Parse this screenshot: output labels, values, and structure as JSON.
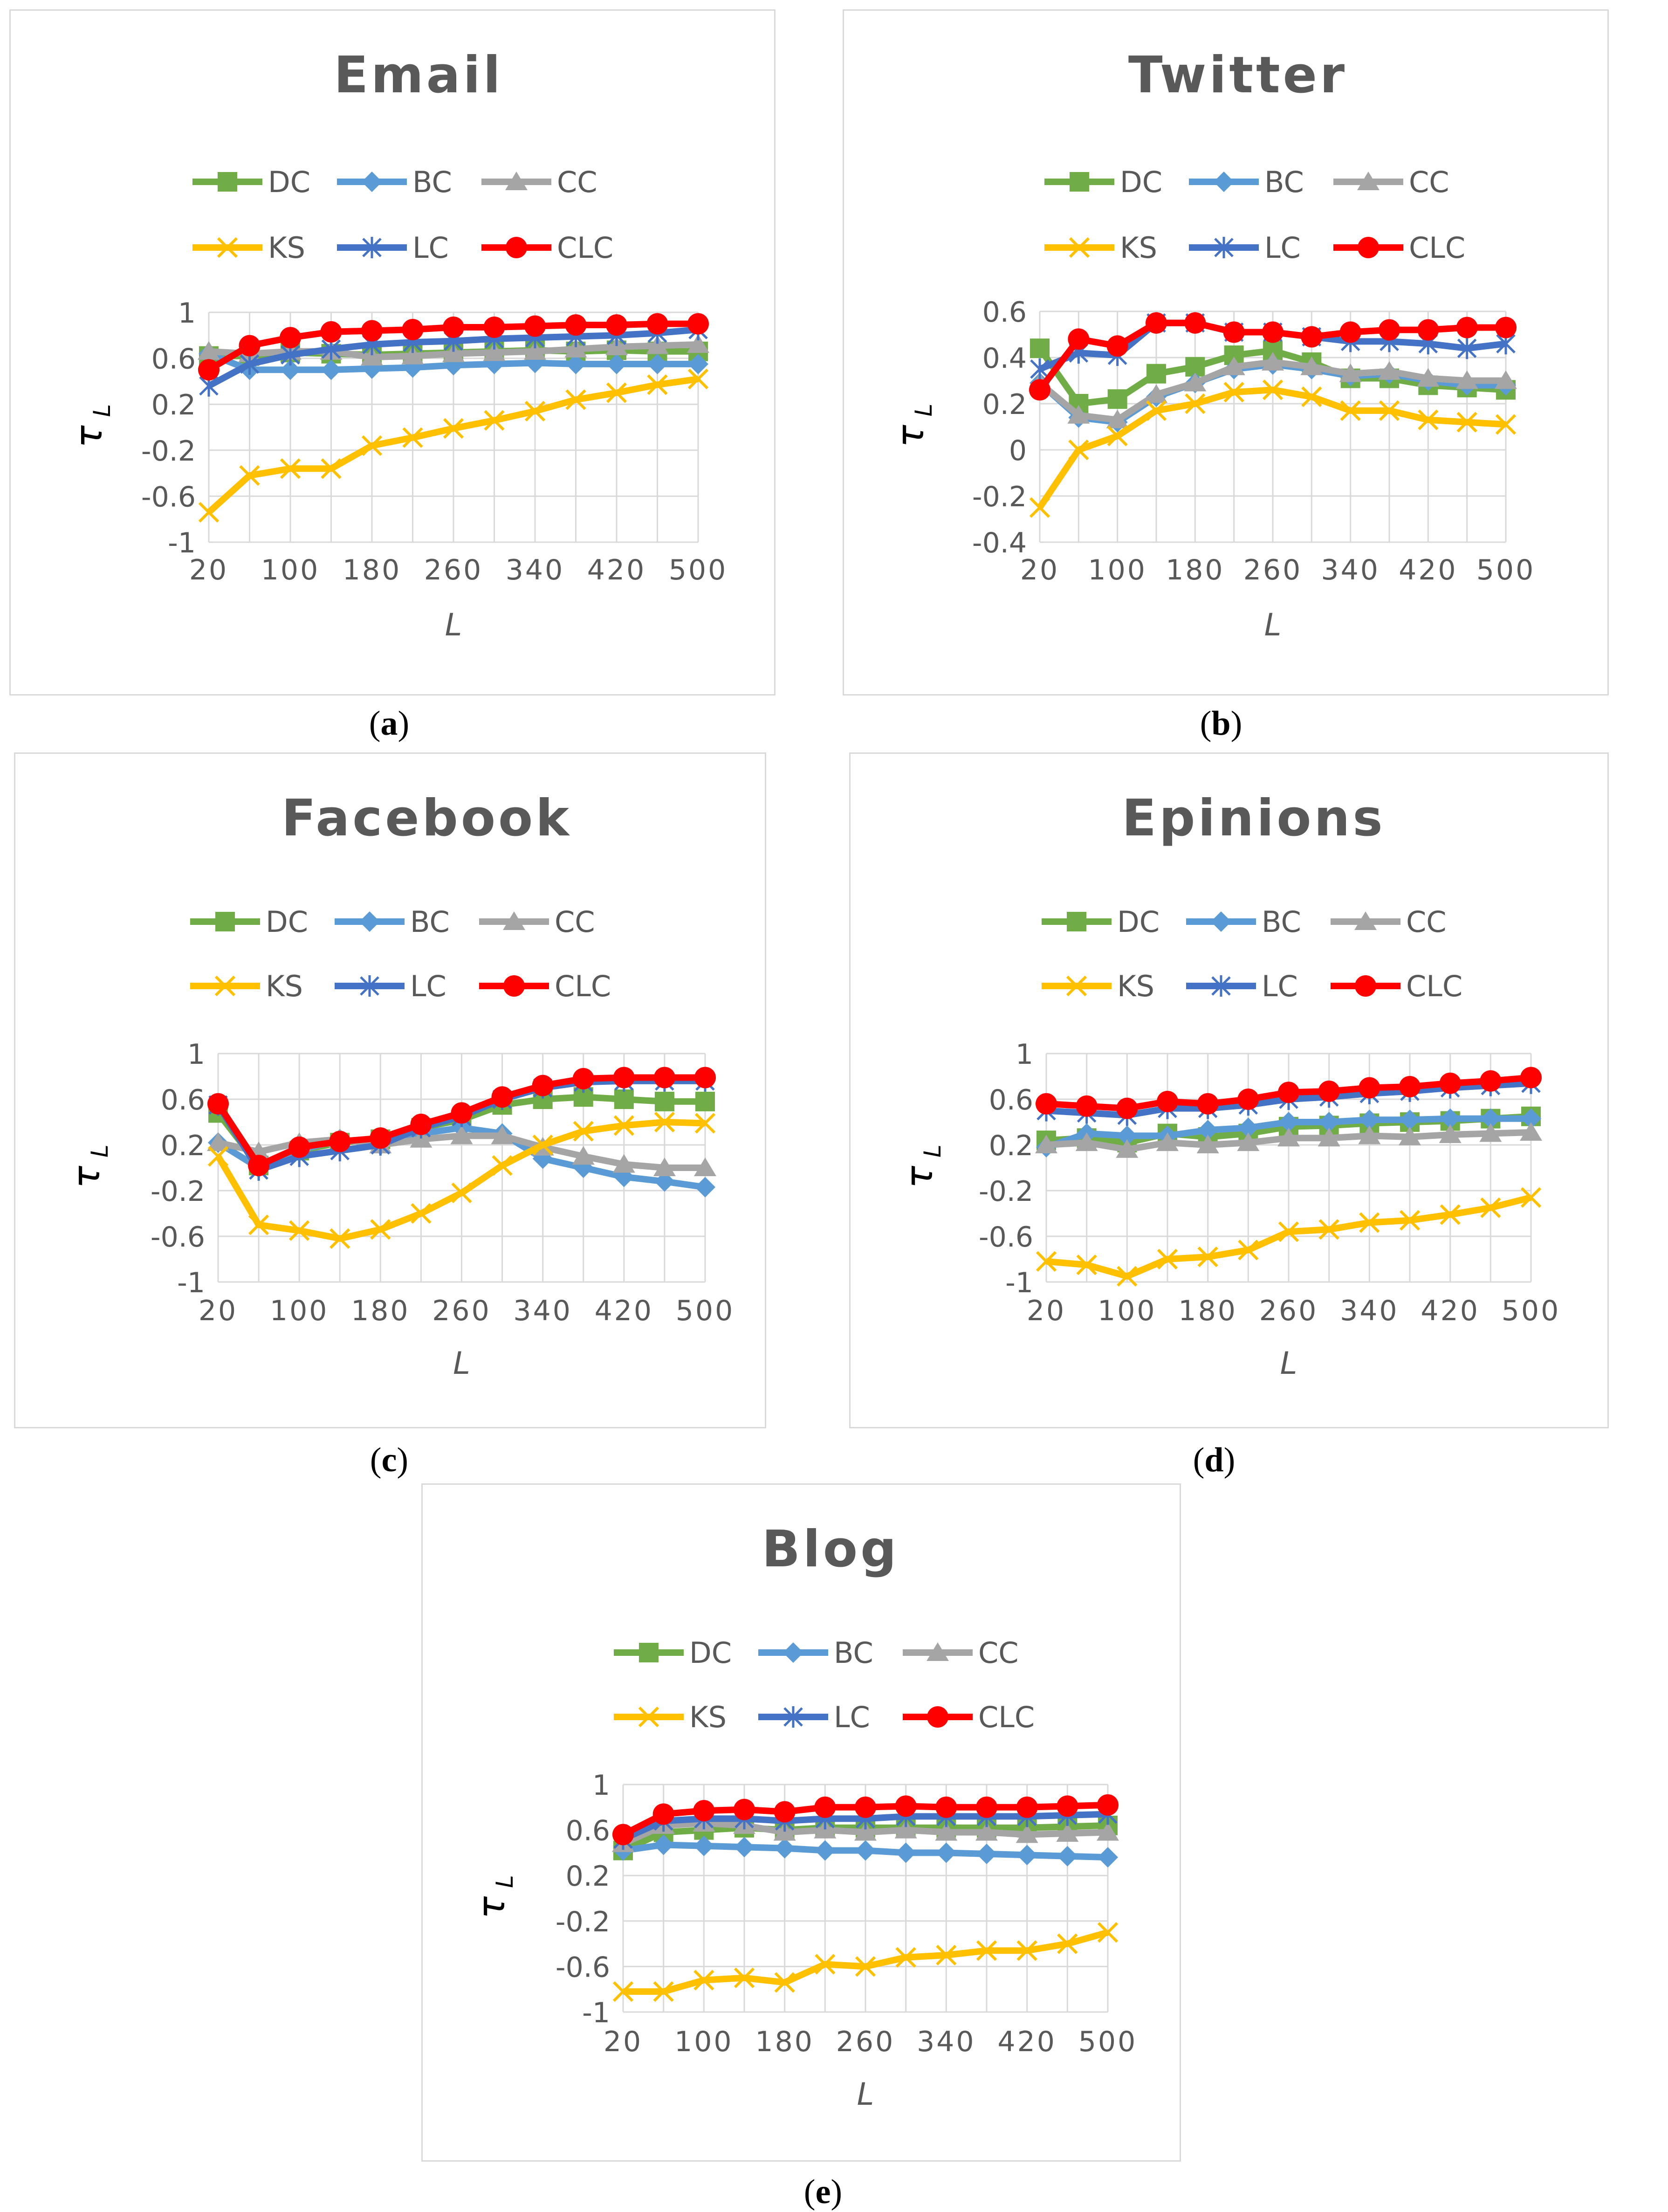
{
  "colors": {
    "DC": "#70ad47",
    "BC": "#5b9bd5",
    "CC": "#a5a5a5",
    "KS": "#ffc000",
    "LC": "#4472c4",
    "CLC": "#ff0000",
    "grid": "#d9d9d9",
    "axis": "#595959"
  },
  "legend_order": [
    "DC",
    "BC",
    "CC",
    "KS",
    "LC",
    "CLC"
  ],
  "chart_data": [
    {
      "id": "a",
      "caption_letter": "a",
      "type": "line",
      "title": "Email",
      "xlabel": "L",
      "ylabel_main": "τ",
      "ylabel_sub": "L",
      "x": [
        20,
        60,
        100,
        140,
        180,
        220,
        260,
        300,
        340,
        380,
        420,
        460,
        500
      ],
      "xticks": [
        "20",
        "100",
        "180",
        "260",
        "340",
        "420",
        "500"
      ],
      "ylim": [
        -1,
        1
      ],
      "yticks": [
        "-1",
        "-0.6",
        "-0.2",
        "0.2",
        "0.6",
        "1"
      ],
      "series": [
        {
          "name": "DC",
          "values": [
            0.62,
            0.62,
            0.65,
            0.64,
            0.63,
            0.64,
            0.65,
            0.66,
            0.67,
            0.66,
            0.67,
            0.66,
            0.66
          ]
        },
        {
          "name": "BC",
          "values": [
            0.64,
            0.5,
            0.5,
            0.5,
            0.51,
            0.52,
            0.54,
            0.55,
            0.56,
            0.55,
            0.55,
            0.55,
            0.55
          ]
        },
        {
          "name": "CC",
          "values": [
            0.66,
            0.64,
            0.66,
            0.66,
            0.61,
            0.62,
            0.64,
            0.65,
            0.66,
            0.68,
            0.7,
            0.71,
            0.72
          ]
        },
        {
          "name": "KS",
          "values": [
            -0.74,
            -0.42,
            -0.36,
            -0.36,
            -0.16,
            -0.09,
            -0.01,
            0.06,
            0.14,
            0.24,
            0.3,
            0.37,
            0.42
          ]
        },
        {
          "name": "LC",
          "values": [
            0.36,
            0.55,
            0.63,
            0.68,
            0.72,
            0.74,
            0.75,
            0.77,
            0.78,
            0.79,
            0.8,
            0.82,
            0.85
          ]
        },
        {
          "name": "CLC",
          "values": [
            0.5,
            0.71,
            0.78,
            0.83,
            0.84,
            0.85,
            0.87,
            0.87,
            0.88,
            0.89,
            0.89,
            0.9,
            0.9
          ]
        }
      ]
    },
    {
      "id": "b",
      "caption_letter": "b",
      "type": "line",
      "title": "Twitter",
      "xlabel": "L",
      "ylabel_main": "τ",
      "ylabel_sub": "L",
      "x": [
        20,
        60,
        100,
        140,
        180,
        220,
        260,
        300,
        340,
        380,
        420,
        460,
        500
      ],
      "xticks": [
        "20",
        "100",
        "180",
        "260",
        "340",
        "420",
        "500"
      ],
      "ylim": [
        -0.4,
        0.6
      ],
      "yticks": [
        "-0.4",
        "-0.2",
        "0",
        "0.2",
        "0.4",
        "0.6"
      ],
      "series": [
        {
          "name": "DC",
          "values": [
            0.44,
            0.2,
            0.22,
            0.33,
            0.36,
            0.41,
            0.43,
            0.38,
            0.31,
            0.31,
            0.28,
            0.27,
            0.26
          ]
        },
        {
          "name": "BC",
          "values": [
            0.29,
            0.14,
            0.12,
            0.23,
            0.29,
            0.35,
            0.37,
            0.35,
            0.32,
            0.33,
            0.3,
            0.28,
            0.28
          ]
        },
        {
          "name": "CC",
          "values": [
            0.29,
            0.15,
            0.13,
            0.24,
            0.29,
            0.36,
            0.38,
            0.36,
            0.33,
            0.34,
            0.31,
            0.3,
            0.3
          ]
        },
        {
          "name": "KS",
          "values": [
            -0.25,
            0.0,
            0.06,
            0.17,
            0.2,
            0.25,
            0.26,
            0.23,
            0.17,
            0.17,
            0.13,
            0.12,
            0.11
          ]
        },
        {
          "name": "LC",
          "values": [
            0.35,
            0.42,
            0.41,
            0.55,
            0.55,
            0.51,
            0.51,
            0.49,
            0.47,
            0.47,
            0.46,
            0.44,
            0.46
          ]
        },
        {
          "name": "CLC",
          "values": [
            0.26,
            0.48,
            0.45,
            0.55,
            0.55,
            0.51,
            0.51,
            0.49,
            0.51,
            0.52,
            0.52,
            0.53,
            0.53
          ]
        }
      ]
    },
    {
      "id": "c",
      "caption_letter": "c",
      "type": "line",
      "title": "Facebook",
      "xlabel": "L",
      "ylabel_main": "τ",
      "ylabel_sub": "L",
      "x": [
        20,
        60,
        100,
        140,
        180,
        220,
        260,
        300,
        340,
        380,
        420,
        460,
        500
      ],
      "xticks": [
        "20",
        "100",
        "180",
        "260",
        "340",
        "420",
        "500"
      ],
      "ylim": [
        -1,
        1
      ],
      "yticks": [
        "-1",
        "-0.6",
        "-0.2",
        "0.2",
        "0.6",
        "1"
      ],
      "series": [
        {
          "name": "DC",
          "values": [
            0.48,
            0.02,
            0.15,
            0.22,
            0.25,
            0.35,
            0.42,
            0.55,
            0.6,
            0.62,
            0.6,
            0.58,
            0.58
          ]
        },
        {
          "name": "BC",
          "values": [
            0.22,
            0.0,
            0.15,
            0.25,
            0.2,
            0.3,
            0.35,
            0.3,
            0.08,
            0.0,
            -0.08,
            -0.12,
            -0.17
          ]
        },
        {
          "name": "CC",
          "values": [
            0.22,
            0.14,
            0.22,
            0.25,
            0.2,
            0.25,
            0.28,
            0.28,
            0.18,
            0.1,
            0.03,
            0.0,
            0.0
          ]
        },
        {
          "name": "KS",
          "values": [
            0.1,
            -0.5,
            -0.55,
            -0.62,
            -0.54,
            -0.4,
            -0.22,
            0.02,
            0.2,
            0.32,
            0.37,
            0.4,
            0.39
          ]
        },
        {
          "name": "LC",
          "values": [
            0.55,
            -0.02,
            0.1,
            0.15,
            0.2,
            0.35,
            0.45,
            0.6,
            0.7,
            0.75,
            0.76,
            0.76,
            0.76
          ]
        },
        {
          "name": "CLC",
          "values": [
            0.56,
            0.02,
            0.18,
            0.23,
            0.26,
            0.38,
            0.48,
            0.62,
            0.72,
            0.78,
            0.79,
            0.79,
            0.79
          ]
        }
      ]
    },
    {
      "id": "d",
      "caption_letter": "d",
      "type": "line",
      "title": "Epinions",
      "xlabel": "L",
      "ylabel_main": "τ",
      "ylabel_sub": "L",
      "x": [
        20,
        60,
        100,
        140,
        180,
        220,
        260,
        300,
        340,
        380,
        420,
        460,
        500
      ],
      "xticks": [
        "20",
        "100",
        "180",
        "260",
        "340",
        "420",
        "500"
      ],
      "ylim": [
        -1,
        1
      ],
      "yticks": [
        "-1",
        "-0.6",
        "-0.2",
        "0.2",
        "0.6",
        "1"
      ],
      "series": [
        {
          "name": "DC",
          "values": [
            0.24,
            0.26,
            0.22,
            0.3,
            0.27,
            0.3,
            0.36,
            0.37,
            0.39,
            0.4,
            0.41,
            0.43,
            0.45
          ]
        },
        {
          "name": "BC",
          "values": [
            0.18,
            0.3,
            0.28,
            0.28,
            0.33,
            0.35,
            0.4,
            0.4,
            0.42,
            0.42,
            0.43,
            0.43,
            0.43
          ]
        },
        {
          "name": "CC",
          "values": [
            0.2,
            0.22,
            0.16,
            0.22,
            0.2,
            0.22,
            0.26,
            0.26,
            0.28,
            0.27,
            0.29,
            0.3,
            0.31
          ]
        },
        {
          "name": "KS",
          "values": [
            -0.82,
            -0.85,
            -0.95,
            -0.8,
            -0.78,
            -0.72,
            -0.56,
            -0.54,
            -0.48,
            -0.46,
            -0.41,
            -0.35,
            -0.26
          ]
        },
        {
          "name": "LC",
          "values": [
            0.5,
            0.48,
            0.46,
            0.52,
            0.52,
            0.55,
            0.6,
            0.62,
            0.65,
            0.67,
            0.7,
            0.72,
            0.74
          ]
        },
        {
          "name": "CLC",
          "values": [
            0.56,
            0.54,
            0.52,
            0.58,
            0.56,
            0.6,
            0.66,
            0.67,
            0.7,
            0.71,
            0.74,
            0.76,
            0.79
          ]
        }
      ]
    },
    {
      "id": "e",
      "caption_letter": "e",
      "type": "line",
      "title": "Blog",
      "xlabel": "L",
      "ylabel_main": "τ",
      "ylabel_sub": "L",
      "x": [
        20,
        60,
        100,
        140,
        180,
        220,
        260,
        300,
        340,
        380,
        420,
        460,
        500
      ],
      "xticks": [
        "20",
        "100",
        "180",
        "260",
        "340",
        "420",
        "500"
      ],
      "ylim": [
        -1,
        1
      ],
      "yticks": [
        "-1",
        "-0.6",
        "-0.2",
        "0.2",
        "0.6",
        "1"
      ],
      "series": [
        {
          "name": "DC",
          "values": [
            0.42,
            0.58,
            0.6,
            0.62,
            0.6,
            0.62,
            0.62,
            0.62,
            0.62,
            0.62,
            0.62,
            0.63,
            0.64
          ]
        },
        {
          "name": "BC",
          "values": [
            0.42,
            0.47,
            0.46,
            0.45,
            0.44,
            0.42,
            0.42,
            0.4,
            0.4,
            0.39,
            0.38,
            0.37,
            0.36
          ]
        },
        {
          "name": "CC",
          "values": [
            0.48,
            0.64,
            0.66,
            0.64,
            0.58,
            0.6,
            0.58,
            0.6,
            0.58,
            0.58,
            0.56,
            0.57,
            0.58
          ]
        },
        {
          "name": "KS",
          "values": [
            -0.82,
            -0.82,
            -0.72,
            -0.7,
            -0.74,
            -0.58,
            -0.6,
            -0.52,
            -0.5,
            -0.46,
            -0.46,
            -0.4,
            -0.3
          ]
        },
        {
          "name": "LC",
          "values": [
            0.52,
            0.68,
            0.7,
            0.7,
            0.68,
            0.7,
            0.7,
            0.72,
            0.72,
            0.72,
            0.72,
            0.73,
            0.74
          ]
        },
        {
          "name": "CLC",
          "values": [
            0.56,
            0.74,
            0.77,
            0.78,
            0.76,
            0.8,
            0.8,
            0.81,
            0.8,
            0.8,
            0.8,
            0.81,
            0.82
          ]
        }
      ]
    }
  ]
}
